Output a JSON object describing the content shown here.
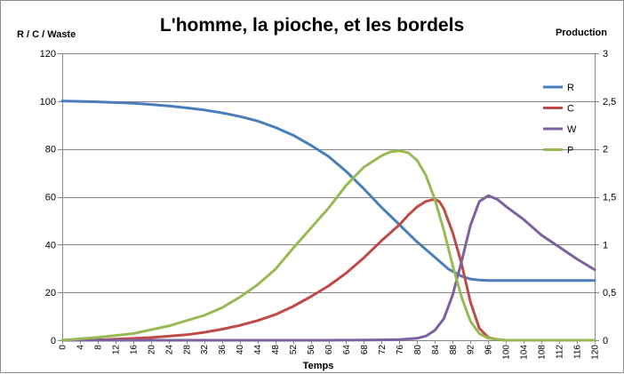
{
  "chart_data": {
    "type": "line",
    "title": "L'homme, la pioche, et les bordels",
    "xlabel": "Temps",
    "ylabel": "R / C / Waste",
    "y2label": "Production",
    "xlim": [
      0,
      120
    ],
    "ylim": [
      0,
      120
    ],
    "y2lim": [
      0,
      3
    ],
    "x_ticks": [
      "0",
      "4",
      "8",
      "12",
      "16",
      "20",
      "24",
      "28",
      "32",
      "36",
      "40",
      "44",
      "48",
      "52",
      "56",
      "60",
      "64",
      "68",
      "72",
      "76",
      "80",
      "84",
      "88",
      "92",
      "96",
      "100",
      "104",
      "108",
      "112",
      "116",
      "120"
    ],
    "y_ticks": [
      "0",
      "20",
      "40",
      "60",
      "80",
      "100",
      "120"
    ],
    "y2_ticks": [
      "0",
      "0,5",
      "1",
      "1,5",
      "2",
      "2,5",
      "3"
    ],
    "legend_position": "right",
    "grid": "horizontal",
    "series": [
      {
        "name": "R",
        "color": "#4a7ebb",
        "axis": "left",
        "points": [
          [
            0,
            100
          ],
          [
            4,
            99.9
          ],
          [
            8,
            99.7
          ],
          [
            12,
            99.4
          ],
          [
            16,
            99.1
          ],
          [
            20,
            98.6
          ],
          [
            24,
            98
          ],
          [
            28,
            97.2
          ],
          [
            32,
            96.3
          ],
          [
            36,
            95.1
          ],
          [
            40,
            93.6
          ],
          [
            44,
            91.7
          ],
          [
            48,
            89
          ],
          [
            52,
            85.8
          ],
          [
            56,
            81.6
          ],
          [
            60,
            76.9
          ],
          [
            64,
            70.6
          ],
          [
            68,
            63.3
          ],
          [
            72,
            55.5
          ],
          [
            76,
            48.3
          ],
          [
            80,
            41.1
          ],
          [
            84,
            34.7
          ],
          [
            87,
            29.8
          ],
          [
            90,
            26.8
          ],
          [
            92,
            25.6
          ],
          [
            94,
            25.2
          ],
          [
            96,
            25
          ],
          [
            100,
            25
          ],
          [
            104,
            25
          ],
          [
            108,
            25
          ],
          [
            112,
            25
          ],
          [
            116,
            25
          ],
          [
            120,
            25
          ]
        ]
      },
      {
        "name": "C",
        "color": "#be4b48",
        "axis": "left",
        "points": [
          [
            0,
            0
          ],
          [
            10,
            0.3
          ],
          [
            20,
            1.1
          ],
          [
            28,
            2.3
          ],
          [
            32,
            3.3
          ],
          [
            36,
            4.6
          ],
          [
            40,
            6.2
          ],
          [
            44,
            8.2
          ],
          [
            48,
            10.7
          ],
          [
            52,
            14.1
          ],
          [
            56,
            18.2
          ],
          [
            60,
            22.7
          ],
          [
            64,
            28.1
          ],
          [
            68,
            34.5
          ],
          [
            72,
            41.7
          ],
          [
            76,
            48.3
          ],
          [
            78,
            52.4
          ],
          [
            80,
            55.8
          ],
          [
            82,
            58.1
          ],
          [
            84,
            59
          ],
          [
            85,
            58
          ],
          [
            86,
            55
          ],
          [
            88,
            45
          ],
          [
            90,
            32
          ],
          [
            92,
            16
          ],
          [
            94,
            5
          ],
          [
            96,
            1.2
          ],
          [
            98,
            0.3
          ],
          [
            100,
            0
          ],
          [
            120,
            0
          ]
        ]
      },
      {
        "name": "W",
        "color": "#7d60a0",
        "axis": "left",
        "points": [
          [
            0,
            0
          ],
          [
            60,
            0
          ],
          [
            70,
            0.1
          ],
          [
            76,
            0.3
          ],
          [
            80,
            0.8
          ],
          [
            82,
            1.8
          ],
          [
            84,
            4.2
          ],
          [
            86,
            9
          ],
          [
            88,
            19
          ],
          [
            90,
            33
          ],
          [
            92,
            48
          ],
          [
            94,
            58
          ],
          [
            96,
            60.5
          ],
          [
            98,
            59
          ],
          [
            100,
            56
          ],
          [
            104,
            50.5
          ],
          [
            108,
            44
          ],
          [
            112,
            39
          ],
          [
            116,
            34
          ],
          [
            120,
            29.5
          ]
        ]
      },
      {
        "name": "P",
        "color": "#98b954",
        "axis": "right",
        "points": [
          [
            0,
            0
          ],
          [
            8,
            0.03
          ],
          [
            16,
            0.07
          ],
          [
            24,
            0.15
          ],
          [
            32,
            0.26
          ],
          [
            36,
            0.34
          ],
          [
            40,
            0.45
          ],
          [
            44,
            0.58
          ],
          [
            48,
            0.74
          ],
          [
            52,
            0.96
          ],
          [
            56,
            1.17
          ],
          [
            60,
            1.38
          ],
          [
            64,
            1.62
          ],
          [
            68,
            1.81
          ],
          [
            72,
            1.93
          ],
          [
            74,
            1.97
          ],
          [
            76,
            1.98
          ],
          [
            78,
            1.96
          ],
          [
            80,
            1.88
          ],
          [
            82,
            1.72
          ],
          [
            84,
            1.47
          ],
          [
            86,
            1.15
          ],
          [
            88,
            0.78
          ],
          [
            90,
            0.45
          ],
          [
            92,
            0.2
          ],
          [
            94,
            0.07
          ],
          [
            96,
            0.02
          ],
          [
            100,
            0
          ],
          [
            120,
            0
          ]
        ]
      }
    ]
  }
}
